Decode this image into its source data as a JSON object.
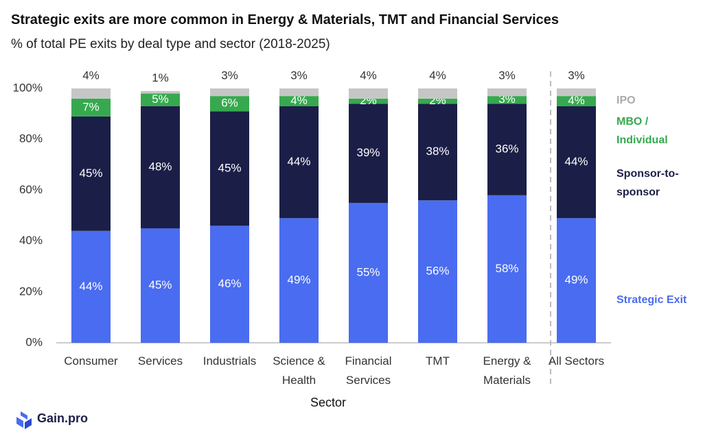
{
  "chart_data": {
    "type": "stacked_bar",
    "title": "Strategic exits are more common in Energy & Materials, TMT and Financial Services",
    "subtitle": "% of total PE exits by deal type and sector (2018-2025)",
    "x_label": "Sector",
    "categories": [
      "Consumer",
      "Services",
      "Industrials",
      "Science & Health",
      "Financial Services",
      "TMT",
      "Energy & Materials",
      "All Sectors"
    ],
    "series": [
      {
        "name": "Strategic Exit",
        "color": "#4a6cf0",
        "values": [
          44,
          45,
          46,
          49,
          55,
          56,
          58,
          49
        ],
        "value_labels": [
          "44%",
          "45%",
          "46%",
          "49%",
          "55%",
          "56%",
          "58%",
          "49%"
        ]
      },
      {
        "name": "Sponsor-to-sponsor",
        "color": "#1b1f47",
        "values": [
          45,
          48,
          45,
          44,
          39,
          38,
          36,
          44
        ],
        "value_labels": [
          "45%",
          "48%",
          "45%",
          "44%",
          "39%",
          "38%",
          "36%",
          "44%"
        ]
      },
      {
        "name": "MBO / Individual",
        "color": "#36a94e",
        "values": [
          7,
          5,
          6,
          4,
          2,
          2,
          3,
          4
        ],
        "value_labels": [
          "7%",
          "5%",
          "6%",
          "4%",
          "2%",
          "2%",
          "3%",
          "4%"
        ]
      },
      {
        "name": "IPO",
        "color": "#c6c6c6",
        "values": [
          4,
          1,
          3,
          3,
          4,
          4,
          3,
          3
        ],
        "value_labels": [
          "4%",
          "1%",
          "3%",
          "3%",
          "4%",
          "4%",
          "3%",
          "3%"
        ]
      }
    ],
    "ylim": [
      0,
      100
    ],
    "yticks": [
      {
        "value": 0,
        "label": "0%"
      },
      {
        "value": 20,
        "label": "20%"
      },
      {
        "value": 40,
        "label": "40%"
      },
      {
        "value": 60,
        "label": "60%"
      },
      {
        "value": 80,
        "label": "80%"
      },
      {
        "value": 100,
        "label": "100%"
      }
    ],
    "legend": "right",
    "source": "Gain.pro"
  }
}
